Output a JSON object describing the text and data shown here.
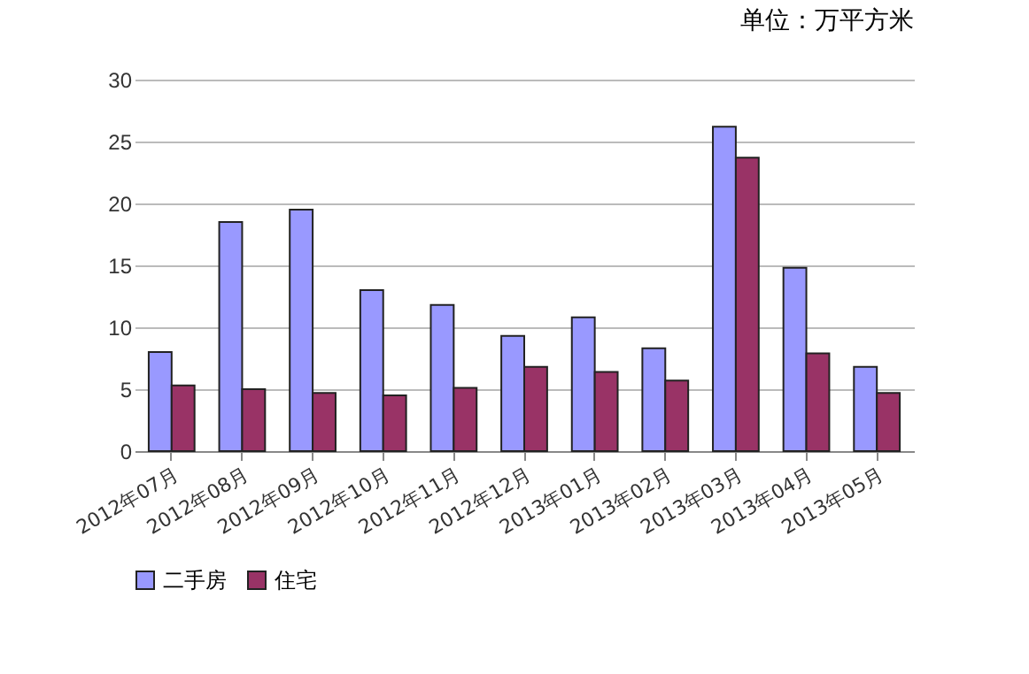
{
  "chart_data": {
    "type": "bar",
    "title": "单位：万平方米",
    "categories": [
      "2012年07月",
      "2012年08月",
      "2012年09月",
      "2012年10月",
      "2012年11月",
      "2012年12月",
      "2013年01月",
      "2013年02月",
      "2013年03月",
      "2013年04月",
      "2013年05月"
    ],
    "series": [
      {
        "name": "二手房",
        "color": "#9999ff",
        "values": [
          8,
          18.5,
          19.5,
          13,
          11.8,
          9.3,
          10.8,
          8.3,
          26.2,
          14.8,
          6.8
        ]
      },
      {
        "name": "住宅",
        "color": "#993366",
        "values": [
          5.3,
          5,
          4.7,
          4.5,
          5.1,
          6.8,
          6.4,
          5.7,
          23.7,
          7.9,
          4.7
        ]
      }
    ],
    "ylim": [
      0,
      30
    ],
    "yticks": [
      0,
      5,
      10,
      15,
      20,
      25,
      30
    ],
    "grid": "y",
    "legend": "bottom"
  }
}
